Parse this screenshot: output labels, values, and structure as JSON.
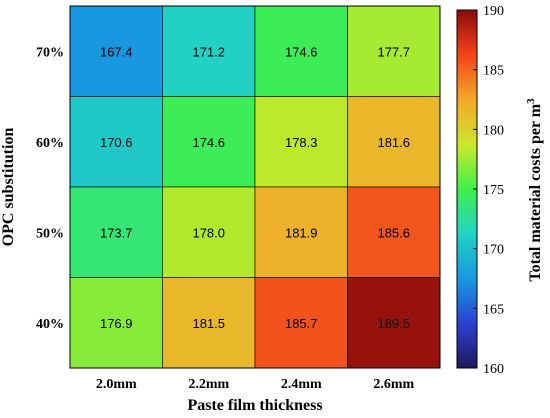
{
  "chart_data": {
    "type": "heatmap",
    "title": "",
    "xlabel": "Paste film thickness",
    "ylabel": "OPC substitution",
    "x_categories": [
      "2.0mm",
      "2.2mm",
      "2.4mm",
      "2.6mm"
    ],
    "y_categories": [
      "70%",
      "60%",
      "50%",
      "40%"
    ],
    "values": [
      [
        167.4,
        171.2,
        174.6,
        177.7
      ],
      [
        170.6,
        174.6,
        178.3,
        181.6
      ],
      [
        173.7,
        178.0,
        181.9,
        185.6
      ],
      [
        176.9,
        181.5,
        185.7,
        189.5
      ]
    ],
    "colorbar": {
      "label": "Total material costs per m",
      "label_superscript": "3",
      "range": [
        160,
        190
      ],
      "ticks": [
        160,
        165,
        170,
        175,
        180,
        185,
        190
      ],
      "colormap": "jet"
    }
  }
}
